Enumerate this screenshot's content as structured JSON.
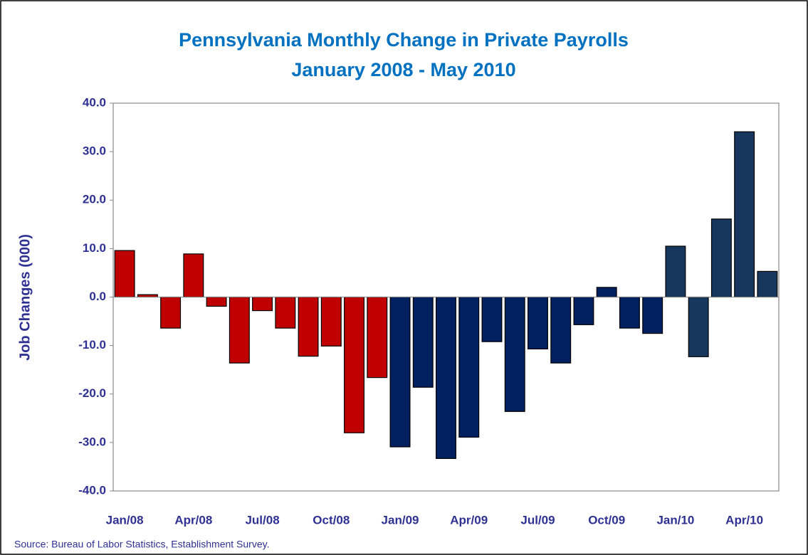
{
  "chart_data": {
    "type": "bar",
    "title": "Pennsylvania Monthly Change in Private Payrolls",
    "subtitle": "January 2008 - May 2010",
    "y_label": "Job Changes (000)",
    "source": "Source: Bureau of Labor Statistics, Establishment Survey.",
    "categories": [
      "Jan/08",
      null,
      null,
      "Apr/08",
      null,
      null,
      "Jul/08",
      null,
      null,
      "Oct/08",
      null,
      null,
      "Jan/09",
      null,
      null,
      "Apr/09",
      null,
      null,
      "Jul/09",
      null,
      null,
      "Oct/09",
      null,
      null,
      "Jan/10",
      null,
      null,
      "Apr/10",
      null
    ],
    "values": [
      9.6,
      0.5,
      -6.4,
      8.9,
      -1.9,
      -13.6,
      -2.8,
      -6.4,
      -12.2,
      -10.1,
      -28.0,
      -16.6,
      -30.9,
      -18.6,
      -33.3,
      -28.9,
      -9.2,
      -23.6,
      -10.7,
      -13.6,
      -5.7,
      2.0,
      -6.4,
      -7.5,
      10.5,
      -12.3,
      16.1,
      34.1,
      5.3
    ],
    "colors": [
      "#c00000",
      "#c00000",
      "#c00000",
      "#c00000",
      "#c00000",
      "#c00000",
      "#c00000",
      "#c00000",
      "#c00000",
      "#c00000",
      "#c00000",
      "#c00000",
      "#002060",
      "#002060",
      "#002060",
      "#002060",
      "#002060",
      "#002060",
      "#002060",
      "#002060",
      "#002060",
      "#002060",
      "#002060",
      "#002060",
      "#17375e",
      "#17375e",
      "#17375e",
      "#17375e",
      "#17375e"
    ],
    "ylim": [
      -40,
      40
    ],
    "yticks": [
      {
        "value": -40,
        "label": "-40.0"
      },
      {
        "value": -30,
        "label": "-30.0"
      },
      {
        "value": -20,
        "label": "-20.0"
      },
      {
        "value": -10,
        "label": "-10.0"
      },
      {
        "value": 0,
        "label": "0.0"
      },
      {
        "value": 10,
        "label": "10.0"
      },
      {
        "value": 20,
        "label": "20.0"
      },
      {
        "value": 30,
        "label": "30.0"
      },
      {
        "value": 40,
        "label": "40.0"
      }
    ],
    "grid": false
  }
}
